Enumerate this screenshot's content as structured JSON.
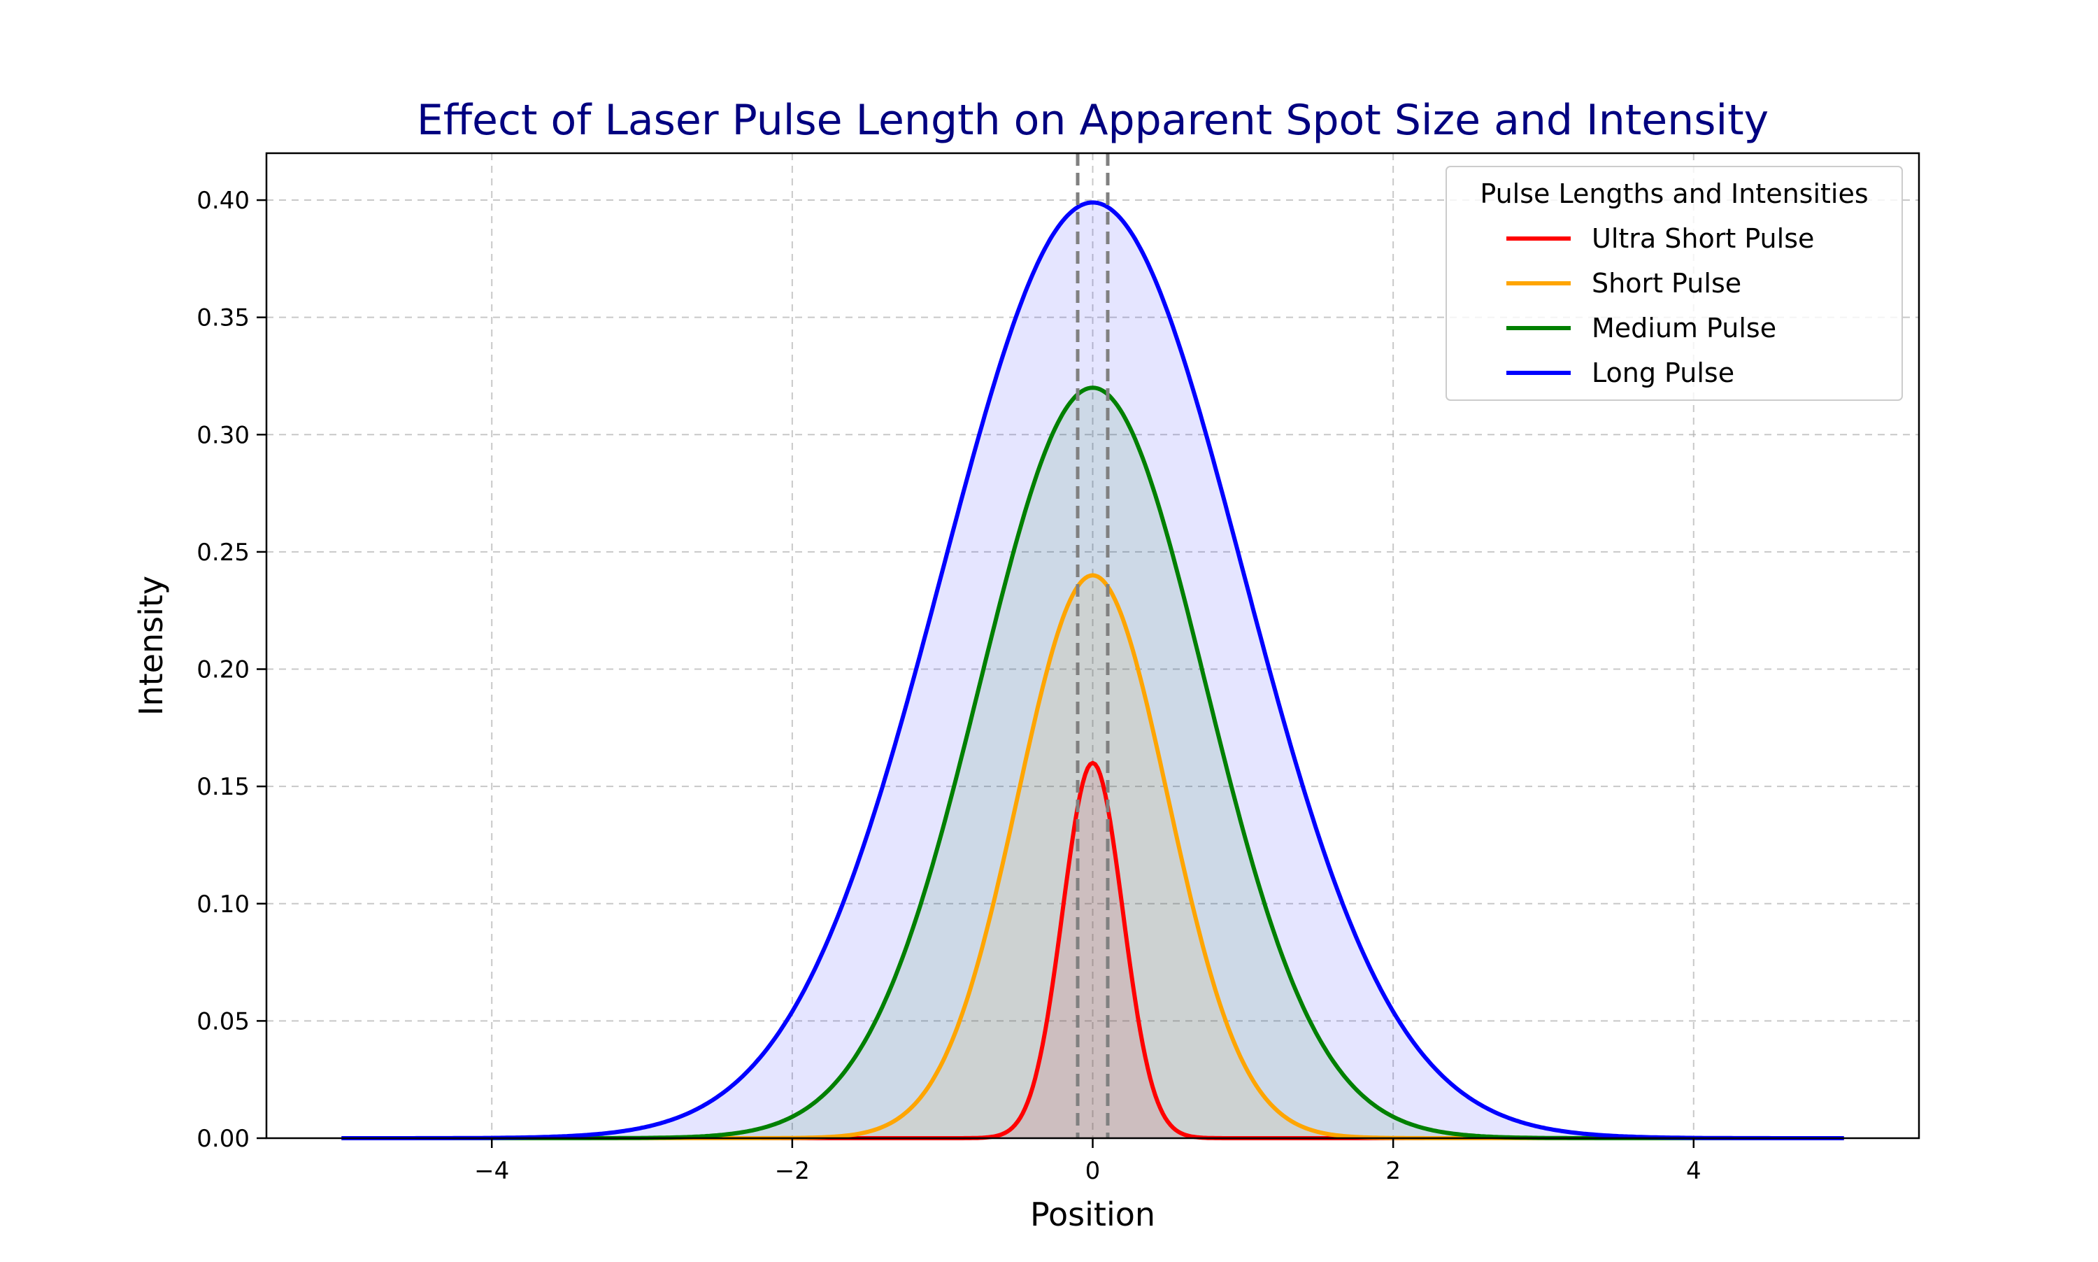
{
  "chart_data": {
    "type": "line",
    "title": "Effect of Laser Pulse Length on Apparent Spot Size and Intensity",
    "title_color": "#000080",
    "xlabel": "Position",
    "ylabel": "Intensity",
    "xlim": [
      -5.5,
      5.5
    ],
    "ylim": [
      0,
      0.42
    ],
    "x_range": [
      -5,
      5
    ],
    "xticks": [
      -4,
      -2,
      0,
      2,
      4
    ],
    "xtick_labels": [
      "−4",
      "−2",
      "0",
      "2",
      "4"
    ],
    "yticks": [
      0,
      0.05,
      0.1,
      0.15,
      0.2,
      0.25,
      0.3,
      0.35,
      0.4
    ],
    "ytick_labels": [
      "0.00",
      "0.05",
      "0.10",
      "0.15",
      "0.20",
      "0.25",
      "0.30",
      "0.35",
      "0.40"
    ],
    "grid": true,
    "legend": {
      "title": "Pulse Lengths and Intensities",
      "placement": "top-right"
    },
    "vertical_lines": [
      -0.1,
      0.1
    ],
    "series": [
      {
        "name": "Ultra Short Pulse",
        "color": "#ff0000",
        "fill_color": "#ff0000",
        "peak": 0.16,
        "sigma": 0.2
      },
      {
        "name": "Short Pulse",
        "color": "#ffa500",
        "fill_color": "#ffa500",
        "peak": 0.24,
        "sigma": 0.5
      },
      {
        "name": "Medium Pulse",
        "color": "#008000",
        "fill_color": "#008000",
        "peak": 0.32,
        "sigma": 0.75
      },
      {
        "name": "Long Pulse",
        "color": "#0000ff",
        "fill_color": "#0000ff",
        "peak": 0.399,
        "sigma": 1.0
      }
    ]
  }
}
